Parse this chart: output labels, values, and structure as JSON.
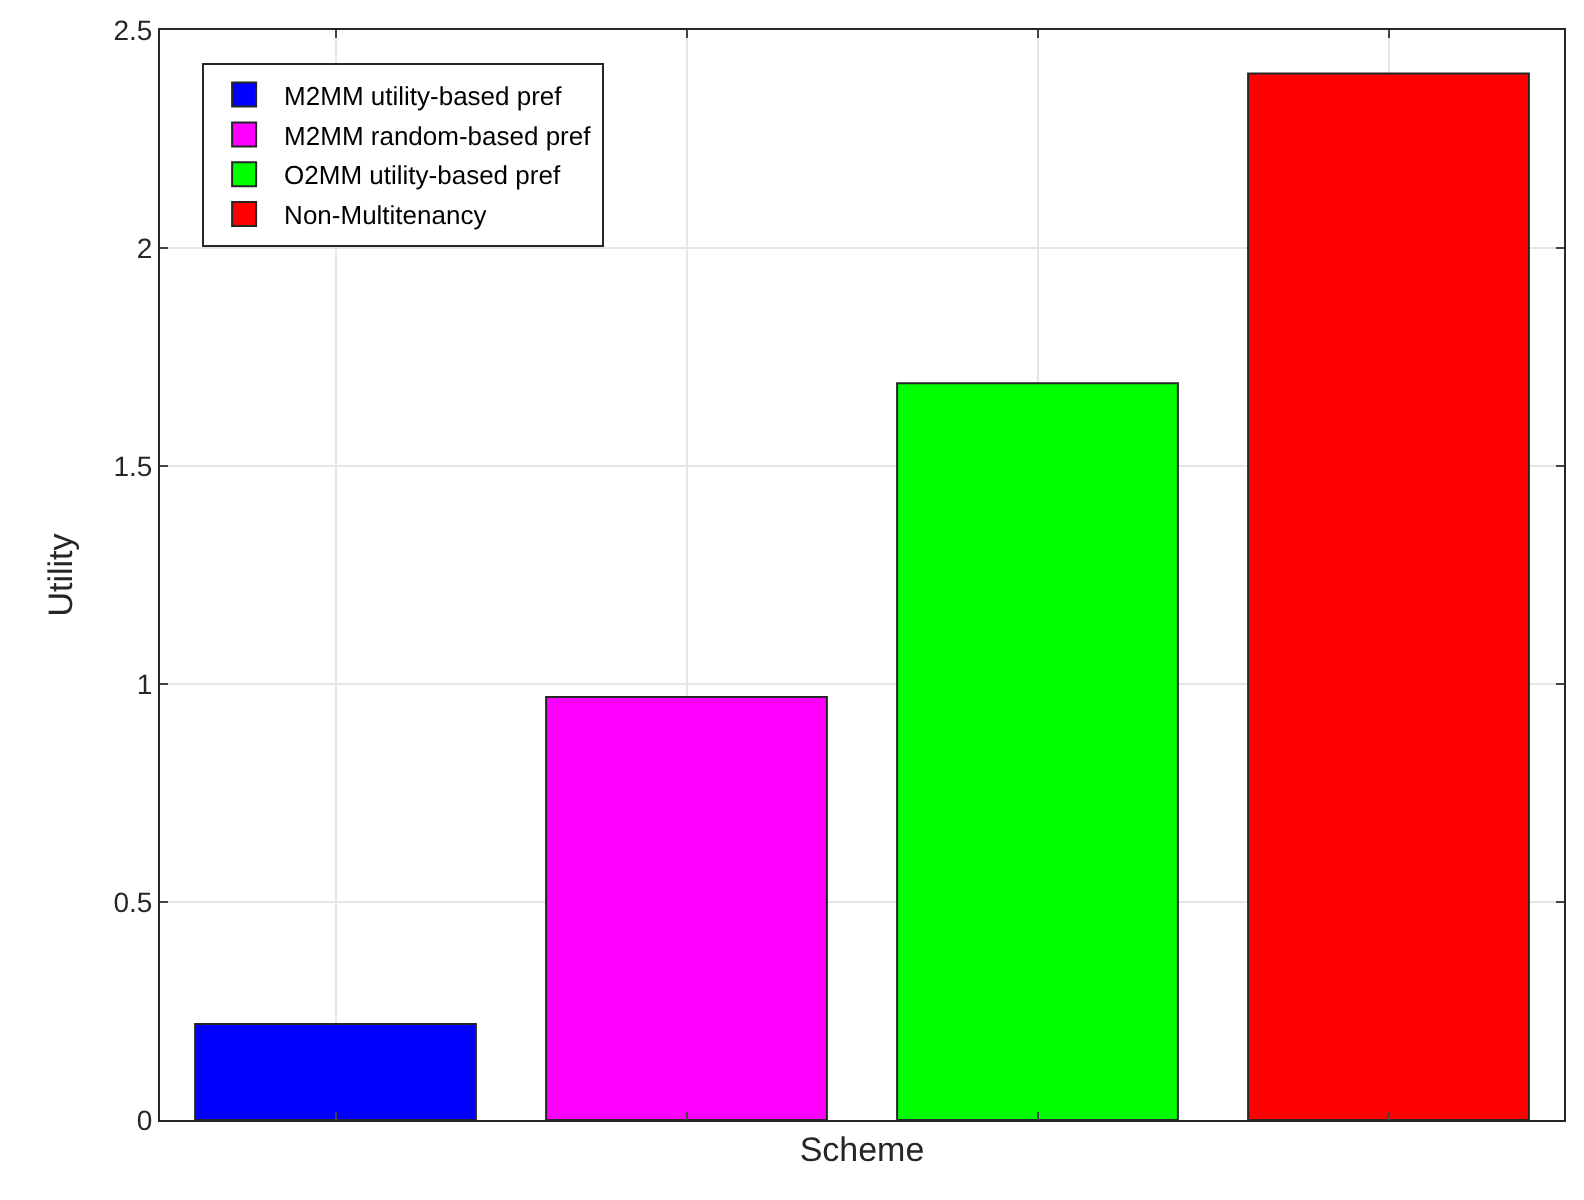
{
  "chart_data": {
    "type": "bar",
    "xlabel": "Scheme",
    "ylabel": "Utility",
    "categories": [
      null,
      null,
      null,
      null
    ],
    "series": [
      {
        "name": "M2MM utility-based pref",
        "color": "#0000ff",
        "values": [
          0.22,
          null,
          null,
          null
        ]
      },
      {
        "name": "M2MM random-based pref",
        "color": "#ff00ff",
        "values": [
          null,
          0.97,
          null,
          null
        ]
      },
      {
        "name": "O2MM utility-based pref",
        "color": "#00ff00",
        "values": [
          null,
          null,
          1.69,
          null
        ]
      },
      {
        "name": "Non-Multitenancy",
        "color": "#ff0000",
        "values": [
          null,
          null,
          null,
          2.4
        ]
      }
    ],
    "ylim": [
      0,
      2.5
    ],
    "yticks": [
      0,
      0.5,
      1,
      1.5,
      2,
      2.5
    ],
    "grid": true,
    "legend": "top left",
    "tick_labels": "y"
  }
}
